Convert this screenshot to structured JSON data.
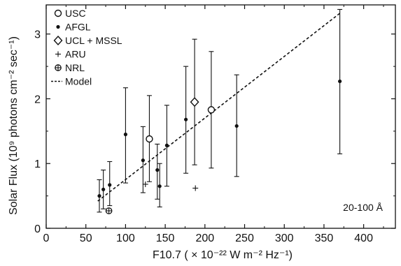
{
  "chart_data": {
    "type": "scatter",
    "xlabel": "F10.7 ( × 10⁻²² W m⁻² Hz⁻¹)",
    "ylabel": "Solar Flux (10⁹ photons cm⁻² sec⁻¹)",
    "xlim": [
      0,
      440
    ],
    "ylim": [
      0,
      3.45
    ],
    "xticks": [
      0,
      50,
      100,
      150,
      200,
      250,
      300,
      350,
      400
    ],
    "yticks": [
      0,
      1,
      2,
      3
    ],
    "grid": false,
    "legend_position": "top-left",
    "annotation": "20-100 Å",
    "series": [
      {
        "name": "USC",
        "marker": "open-circle",
        "points": [
          {
            "x": 130,
            "y": 1.38,
            "lo": 0.72,
            "hi": 2.05
          },
          {
            "x": 208,
            "y": 1.83,
            "lo": 0.93,
            "hi": 2.73
          }
        ]
      },
      {
        "name": "AFGL",
        "marker": "filled-circle",
        "points": [
          {
            "x": 67,
            "y": 0.5,
            "lo": 0.25,
            "hi": 0.75
          },
          {
            "x": 72,
            "y": 0.6,
            "lo": 0.3,
            "hi": 0.9
          },
          {
            "x": 80,
            "y": 0.67,
            "lo": 0.35,
            "hi": 1.03
          },
          {
            "x": 100,
            "y": 1.45,
            "lo": 0.7,
            "hi": 2.17
          },
          {
            "x": 122,
            "y": 1.05,
            "lo": 0.55,
            "hi": 1.57
          },
          {
            "x": 140,
            "y": 0.9,
            "lo": 0.45,
            "hi": 1.3
          },
          {
            "x": 143,
            "y": 0.65,
            "lo": 0.33,
            "hi": 1.0
          },
          {
            "x": 152,
            "y": 1.28,
            "lo": 0.65,
            "hi": 1.9
          },
          {
            "x": 176,
            "y": 1.68,
            "lo": 0.85,
            "hi": 2.5
          },
          {
            "x": 240,
            "y": 1.58,
            "lo": 0.8,
            "hi": 2.37
          },
          {
            "x": 370,
            "y": 2.27,
            "lo": 1.15,
            "hi": 3.38
          }
        ]
      },
      {
        "name": "UCL + MSSL",
        "marker": "open-diamond",
        "points": [
          {
            "x": 187,
            "y": 1.95,
            "lo": 0.98,
            "hi": 2.92
          }
        ]
      },
      {
        "name": "ARU",
        "marker": "plus",
        "points": [
          {
            "x": 125,
            "y": 0.68
          },
          {
            "x": 188,
            "y": 0.62
          }
        ]
      },
      {
        "name": "NRL",
        "marker": "circled-plus",
        "points": [
          {
            "x": 79,
            "y": 0.27
          }
        ]
      }
    ],
    "model": {
      "name": "Model",
      "style": "dashed",
      "points": [
        {
          "x": 65,
          "y": 0.42
        },
        {
          "x": 370,
          "y": 3.32
        }
      ]
    }
  }
}
